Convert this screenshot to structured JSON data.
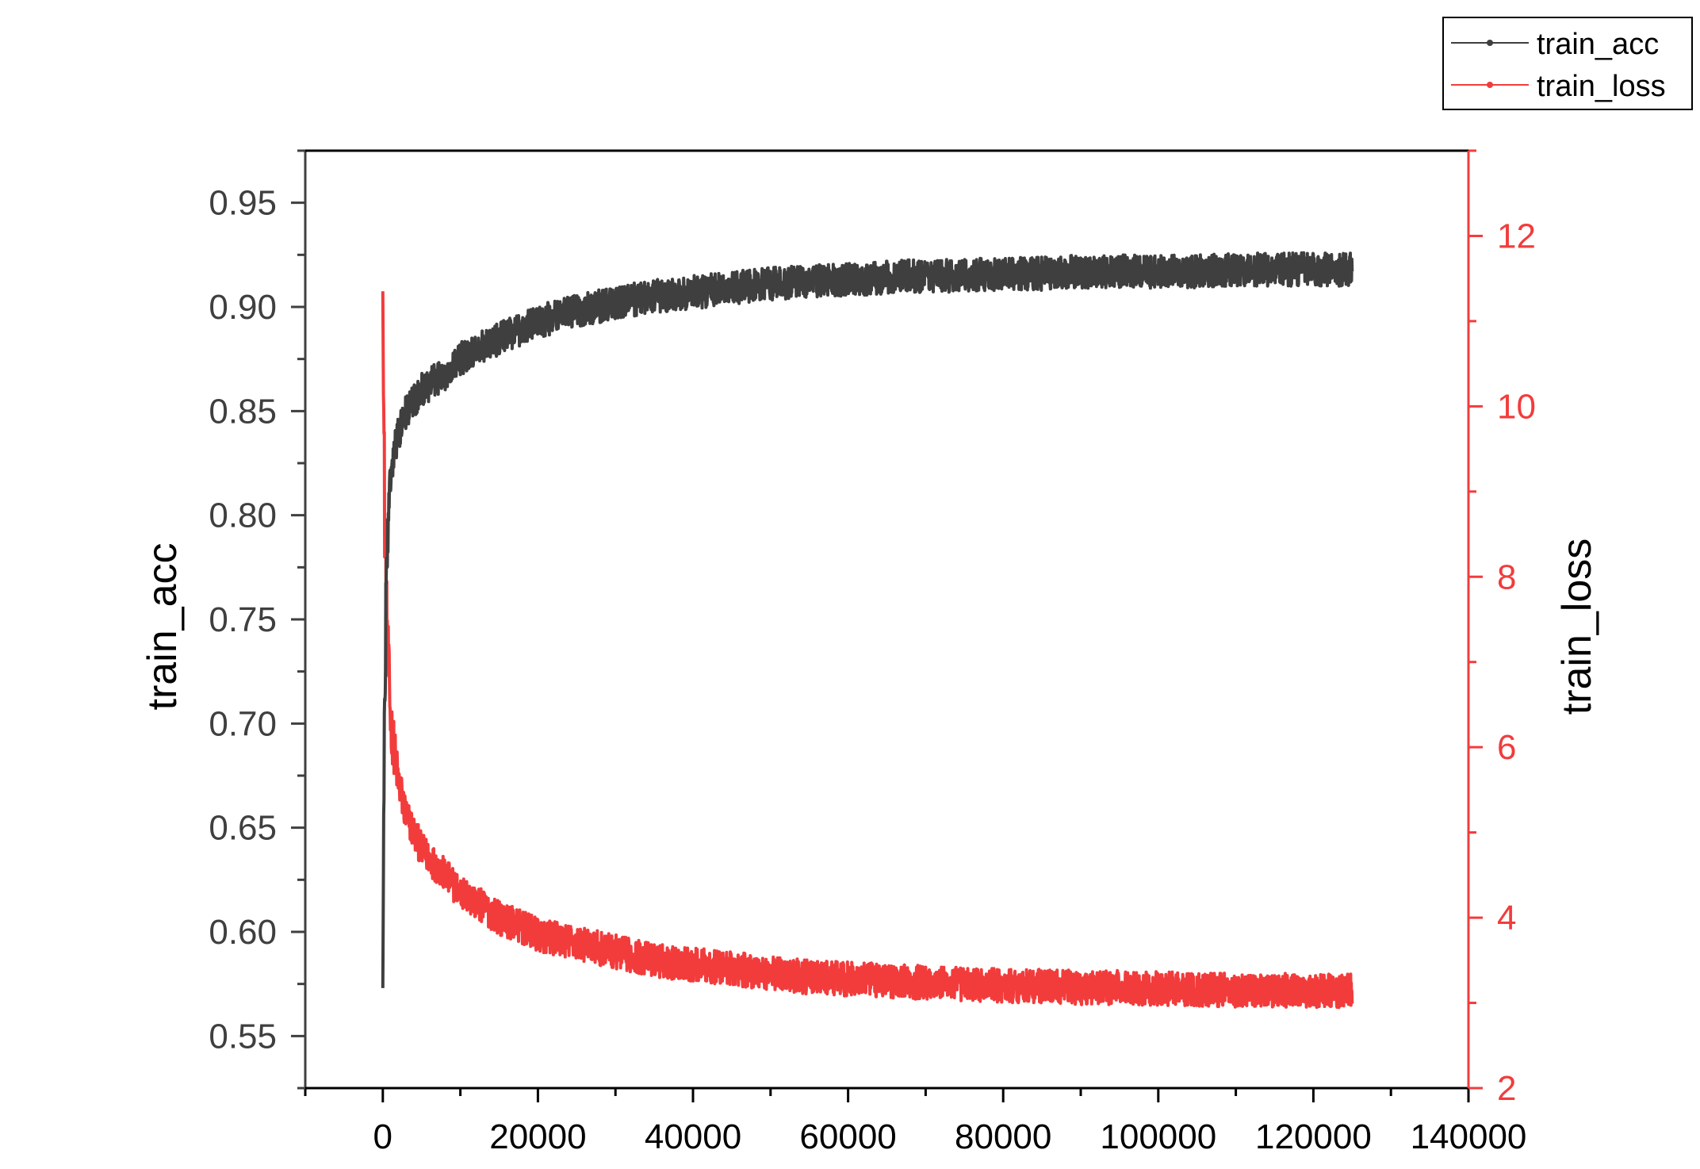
{
  "chart_data": {
    "type": "line",
    "title": "",
    "xlabel": "",
    "ylabel": "train_acc",
    "y2label": "train_loss",
    "xlim": [
      -10000,
      140000
    ],
    "xticks": [
      0,
      20000,
      40000,
      60000,
      80000,
      100000,
      120000,
      140000
    ],
    "xtick_labels": [
      "0",
      "20000",
      "40000",
      "60000",
      "80000",
      "100000",
      "120000",
      "140000"
    ],
    "ylim": [
      0.525,
      0.975
    ],
    "yticks": [
      0.55,
      0.6,
      0.65,
      0.7,
      0.75,
      0.8,
      0.85,
      0.9,
      0.95
    ],
    "ytick_labels": [
      "0.55",
      "0.60",
      "0.65",
      "0.70",
      "0.75",
      "0.80",
      "0.85",
      "0.90",
      "0.95"
    ],
    "y2lim": [
      2,
      13
    ],
    "y2ticks": [
      2,
      4,
      6,
      8,
      10,
      12
    ],
    "y2tick_labels": [
      "2",
      "4",
      "6",
      "8",
      "10",
      "12"
    ],
    "grid": false,
    "legend_position": "top-right",
    "series": [
      {
        "name": "train_acc",
        "axis": "left",
        "color": "#3f3f3f",
        "x": [
          0,
          200,
          500,
          1000,
          2000,
          3000,
          5000,
          8000,
          10000,
          15000,
          20000,
          25000,
          30000,
          35000,
          40000,
          45000,
          50000,
          55000,
          60000,
          65000,
          70000,
          75000,
          80000,
          85000,
          90000,
          95000,
          100000,
          105000,
          110000,
          115000,
          120000,
          125000
        ],
        "values": [
          0.573,
          0.7,
          0.78,
          0.82,
          0.84,
          0.85,
          0.86,
          0.868,
          0.875,
          0.885,
          0.893,
          0.898,
          0.902,
          0.905,
          0.907,
          0.909,
          0.911,
          0.912,
          0.913,
          0.914,
          0.915,
          0.915,
          0.916,
          0.916,
          0.917,
          0.917,
          0.917,
          0.917,
          0.918,
          0.918,
          0.918,
          0.918
        ],
        "noise": [
          0.0,
          0.02,
          0.015,
          0.01,
          0.009,
          0.008,
          0.008,
          0.008,
          0.008,
          0.008,
          0.008,
          0.008,
          0.008,
          0.008,
          0.008,
          0.008,
          0.008,
          0.008,
          0.008,
          0.008,
          0.008,
          0.008,
          0.008,
          0.008,
          0.008,
          0.008,
          0.008,
          0.008,
          0.008,
          0.008,
          0.008,
          0.008
        ]
      },
      {
        "name": "train_loss",
        "axis": "right",
        "color": "#f23c3c",
        "x": [
          0,
          200,
          500,
          1000,
          2000,
          3000,
          5000,
          8000,
          10000,
          15000,
          20000,
          25000,
          30000,
          35000,
          40000,
          45000,
          50000,
          55000,
          60000,
          65000,
          70000,
          75000,
          80000,
          85000,
          90000,
          95000,
          100000,
          105000,
          110000,
          115000,
          120000,
          125000
        ],
        "values": [
          11.35,
          9.0,
          7.5,
          6.3,
          5.6,
          5.2,
          4.8,
          4.5,
          4.3,
          4.0,
          3.8,
          3.7,
          3.6,
          3.5,
          3.45,
          3.4,
          3.35,
          3.3,
          3.28,
          3.26,
          3.24,
          3.22,
          3.2,
          3.2,
          3.18,
          3.18,
          3.17,
          3.16,
          3.15,
          3.15,
          3.14,
          3.14
        ],
        "noise": [
          0.0,
          0.8,
          0.5,
          0.35,
          0.25,
          0.22,
          0.2,
          0.2,
          0.2,
          0.2,
          0.2,
          0.2,
          0.2,
          0.2,
          0.2,
          0.2,
          0.2,
          0.2,
          0.2,
          0.2,
          0.2,
          0.2,
          0.2,
          0.2,
          0.2,
          0.2,
          0.2,
          0.2,
          0.2,
          0.2,
          0.2,
          0.2
        ]
      }
    ]
  }
}
